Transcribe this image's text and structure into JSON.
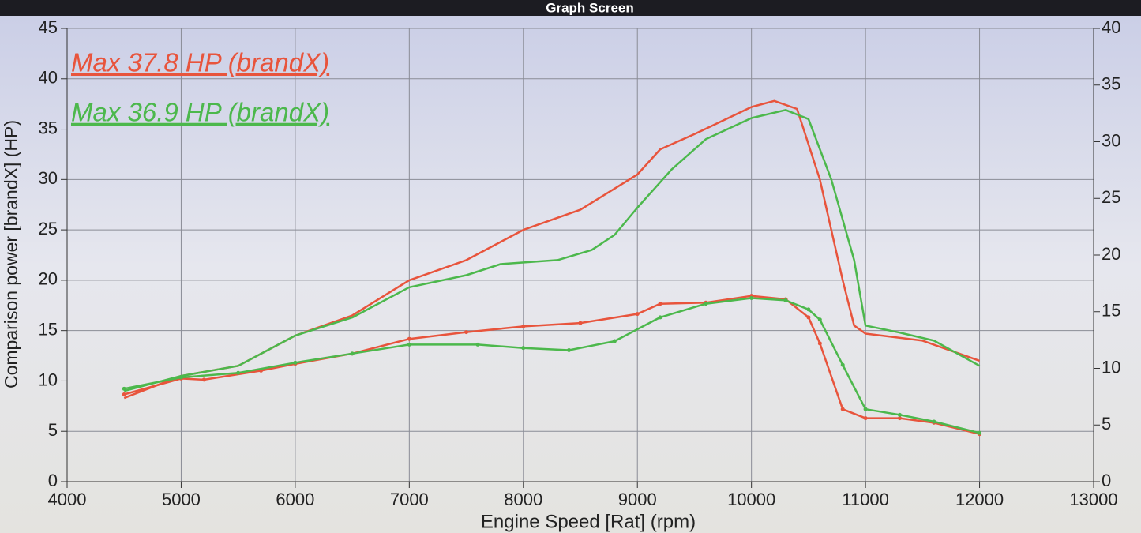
{
  "chart_data": {
    "type": "line",
    "title": "Graph Screen",
    "x_label": "Engine Speed [Rat] (rpm)",
    "y_label": "Comparison power [brandX] (HP)",
    "xlim": [
      4000,
      13000
    ],
    "xticks": [
      4000,
      5000,
      6000,
      7000,
      8000,
      9000,
      10000,
      11000,
      12000,
      13000
    ],
    "ylim": [
      0,
      45
    ],
    "yticks": [
      0,
      5,
      10,
      15,
      20,
      25,
      30,
      35,
      40,
      45
    ],
    "y2lim": [
      0,
      40
    ],
    "y2ticks": [
      0,
      5,
      10,
      15,
      20,
      25,
      30,
      35,
      40
    ],
    "grid": true,
    "series": [
      {
        "name": "Max 37.8 HP (brandX)",
        "color": "#e8543c",
        "x": [
          4500,
          5000,
          5500,
          6000,
          6500,
          7000,
          7500,
          8000,
          8500,
          9000,
          9200,
          9500,
          10000,
          10200,
          10400,
          10600,
          10800,
          10900,
          11000,
          11500,
          12000
        ],
        "values": [
          8.3,
          10.5,
          11.5,
          14.5,
          16.5,
          20,
          22,
          25,
          27,
          30.5,
          33,
          34.5,
          37.2,
          37.8,
          37,
          30,
          20,
          15.5,
          14.7,
          14,
          12
        ]
      },
      {
        "name": "Max 36.9 HP (brandX)",
        "color": "#4cb84c",
        "x": [
          4500,
          5000,
          5500,
          6000,
          6500,
          7000,
          7500,
          7800,
          8300,
          8600,
          8800,
          9000,
          9300,
          9600,
          10000,
          10300,
          10500,
          10700,
          10900,
          11000,
          11300,
          11600,
          12000
        ],
        "values": [
          9,
          10.5,
          11.5,
          14.5,
          16.3,
          19.3,
          20.5,
          21.6,
          22,
          23,
          24.5,
          27.2,
          31,
          34,
          36.1,
          36.9,
          36,
          30,
          22,
          15.5,
          14.8,
          14,
          11.5
        ]
      },
      {
        "color": "#e8543c",
        "axis": "y2",
        "x": [
          4500,
          5000,
          5200,
          5700,
          6000,
          6500,
          7000,
          7500,
          8000,
          8500,
          9000,
          9200,
          9600,
          10000,
          10300,
          10500,
          10600,
          10800,
          11000,
          11300,
          11600,
          12000
        ],
        "values": [
          7.7,
          9.1,
          9.0,
          9.8,
          10.4,
          11.3,
          12.6,
          13.2,
          13.7,
          14,
          14.8,
          15.7,
          15.8,
          16.4,
          16.1,
          14.5,
          12.2,
          6.4,
          5.6,
          5.6,
          5.2,
          4.2
        ]
      },
      {
        "color": "#4cb84c",
        "axis": "y2",
        "x": [
          4500,
          5000,
          5500,
          6000,
          6500,
          7000,
          7600,
          8000,
          8400,
          8800,
          9200,
          9600,
          10000,
          10300,
          10500,
          10600,
          10800,
          11000,
          11300,
          11600,
          12000
        ],
        "values": [
          8.2,
          9.2,
          9.6,
          10.5,
          11.3,
          12.1,
          12.1,
          11.8,
          11.6,
          12.4,
          14.5,
          15.7,
          16.2,
          16,
          15.2,
          14.3,
          10.3,
          6.4,
          5.9,
          5.3,
          4.3
        ]
      }
    ]
  }
}
